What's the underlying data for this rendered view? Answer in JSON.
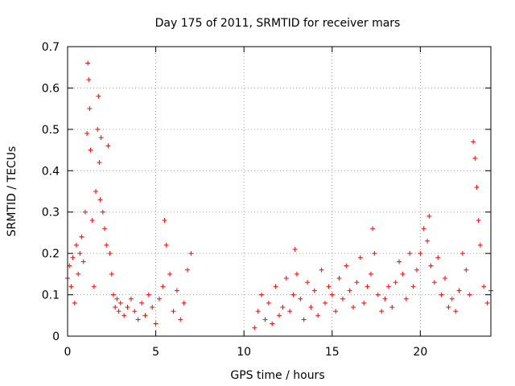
{
  "chart_data": {
    "type": "scatter",
    "title": "Day 175 of 2011, SRMTID for receiver mars",
    "xlabel": "GPS time / hours",
    "ylabel": "SRMTID / TECUs",
    "xlim": [
      0,
      24
    ],
    "ylim": [
      0,
      0.7
    ],
    "xticks": [
      0,
      5,
      10,
      15,
      20
    ],
    "xtick_labels": [
      "0",
      "5",
      "10",
      "15",
      "20"
    ],
    "yticks": [
      0,
      0.1,
      0.2,
      0.3,
      0.4,
      0.5,
      0.6,
      0.7
    ],
    "ytick_labels": [
      "0",
      "0.1",
      "0.2",
      "0.3",
      "0.4",
      "0.5",
      "0.6",
      "0.7"
    ],
    "grid": true,
    "marker": "+",
    "marker_color": "#ff0000",
    "series": [
      {
        "name": "SRMTID",
        "x": [
          0.0,
          0.1,
          0.2,
          0.3,
          0.4,
          0.5,
          0.6,
          0.7,
          0.8,
          0.9,
          1.0,
          1.1,
          1.15,
          1.2,
          1.25,
          1.3,
          1.4,
          1.5,
          1.6,
          1.7,
          1.75,
          1.8,
          1.85,
          1.9,
          2.0,
          2.1,
          2.2,
          2.3,
          2.4,
          2.5,
          2.6,
          2.7,
          2.8,
          2.9,
          3.0,
          3.2,
          3.4,
          3.6,
          3.8,
          4.0,
          4.2,
          4.4,
          4.6,
          4.8,
          5.0,
          5.2,
          5.4,
          5.5,
          5.6,
          5.8,
          6.0,
          6.2,
          6.4,
          6.6,
          6.8,
          7.0,
          10.6,
          10.8,
          11.0,
          11.2,
          11.4,
          11.6,
          11.8,
          12.0,
          12.2,
          12.4,
          12.6,
          12.8,
          12.9,
          13.0,
          13.2,
          13.4,
          13.6,
          13.8,
          14.0,
          14.2,
          14.4,
          14.6,
          14.8,
          15.0,
          15.2,
          15.4,
          15.6,
          15.8,
          16.0,
          16.2,
          16.4,
          16.6,
          16.8,
          17.0,
          17.2,
          17.3,
          17.4,
          17.6,
          17.8,
          18.0,
          18.2,
          18.4,
          18.6,
          18.8,
          19.0,
          19.2,
          19.4,
          19.6,
          19.8,
          20.0,
          20.2,
          20.4,
          20.5,
          20.6,
          20.8,
          21.0,
          21.2,
          21.4,
          21.6,
          21.8,
          22.0,
          22.2,
          22.4,
          22.6,
          22.8,
          23.0,
          23.1,
          23.2,
          23.3,
          23.4,
          23.6,
          23.8,
          24.0
        ],
        "y": [
          0.14,
          0.17,
          0.12,
          0.19,
          0.08,
          0.22,
          0.15,
          0.2,
          0.24,
          0.18,
          0.3,
          0.49,
          0.66,
          0.62,
          0.55,
          0.45,
          0.28,
          0.12,
          0.35,
          0.5,
          0.58,
          0.42,
          0.33,
          0.48,
          0.3,
          0.26,
          0.22,
          0.46,
          0.2,
          0.15,
          0.1,
          0.07,
          0.09,
          0.06,
          0.08,
          0.05,
          0.07,
          0.09,
          0.06,
          0.04,
          0.08,
          0.05,
          0.1,
          0.07,
          0.03,
          0.09,
          0.12,
          0.28,
          0.22,
          0.15,
          0.06,
          0.11,
          0.04,
          0.08,
          0.16,
          0.2,
          0.02,
          0.06,
          0.1,
          0.04,
          0.08,
          0.03,
          0.12,
          0.05,
          0.07,
          0.14,
          0.06,
          0.1,
          0.21,
          0.15,
          0.09,
          0.04,
          0.13,
          0.07,
          0.11,
          0.05,
          0.16,
          0.08,
          0.12,
          0.1,
          0.06,
          0.14,
          0.09,
          0.17,
          0.11,
          0.07,
          0.13,
          0.19,
          0.08,
          0.12,
          0.15,
          0.26,
          0.2,
          0.1,
          0.06,
          0.09,
          0.12,
          0.07,
          0.13,
          0.18,
          0.15,
          0.09,
          0.2,
          0.12,
          0.16,
          0.2,
          0.26,
          0.23,
          0.29,
          0.17,
          0.13,
          0.19,
          0.1,
          0.14,
          0.07,
          0.09,
          0.06,
          0.11,
          0.2,
          0.16,
          0.1,
          0.47,
          0.43,
          0.36,
          0.28,
          0.22,
          0.12,
          0.08,
          0.11
        ]
      }
    ]
  }
}
